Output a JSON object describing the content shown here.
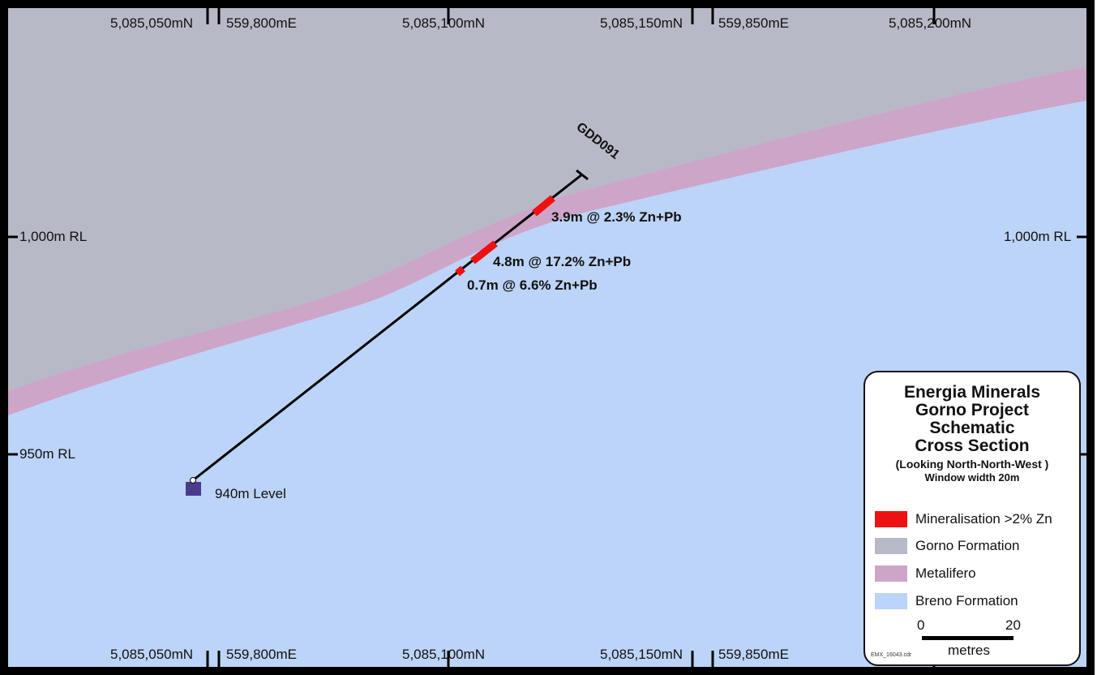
{
  "grid_labels": {
    "n5050": "5,085,050mN",
    "e800": "559,800mE",
    "n5100": "5,085,100mN",
    "n5150": "5,085,150mN",
    "e850": "559,850mE",
    "n5200": "5,085,200mN"
  },
  "rl_labels": {
    "rl1000": "1,000m RL",
    "rl950": "950m RL"
  },
  "drillhole": {
    "name": "GDD091",
    "collar_label": "940m Level"
  },
  "intercepts": [
    "3.9m @ 2.3% Zn+Pb",
    "4.8m @ 17.2% Zn+Pb",
    "0.7m @ 6.6% Zn+Pb"
  ],
  "legend": {
    "title_lines": [
      "Energia Minerals",
      "Gorno Project",
      "Schematic",
      "Cross Section"
    ],
    "subtitle": "(Looking North-North-West )",
    "window": "Window width 20m",
    "items": [
      {
        "label": "Mineralisation >2% Zn",
        "color": "#ee1111"
      },
      {
        "label": "Gorno Formation",
        "color": "#b8b9c6"
      },
      {
        "label": "Metalifero",
        "color": "#cda5c9"
      },
      {
        "label": "Breno Formation",
        "color": "#bcd4f7"
      }
    ],
    "scale_min": "0",
    "scale_max": "20",
    "scale_unit": "metres",
    "file_ref": "EMX_16043.cdr"
  },
  "colors": {
    "gorno": "#b8b9c6",
    "metalifero": "#cda5c9",
    "breno": "#bcd4f7",
    "mineral": "#ee1111",
    "collar": "#4b3b8f"
  }
}
